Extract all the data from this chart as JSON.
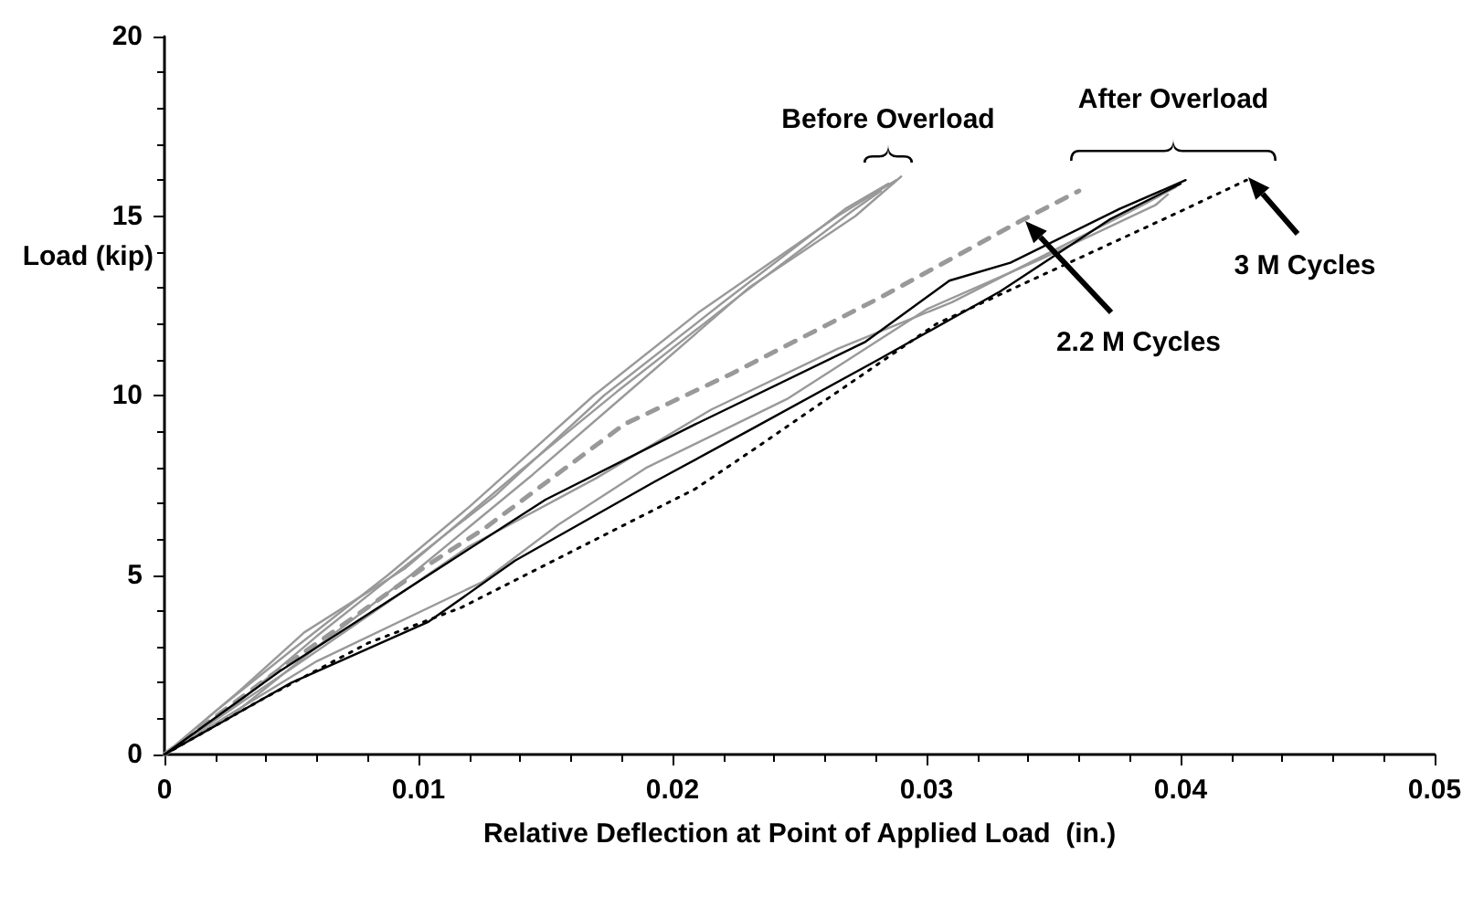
{
  "chart_data": {
    "type": "line",
    "xlabel": "Relative Deflection at Point of Applied Load  (in.)",
    "ylabel": "Load (kip)",
    "xlim": [
      0,
      0.05
    ],
    "xticks": [
      0,
      0.01,
      0.02,
      0.03,
      0.04,
      0.05
    ],
    "ylim": [
      0,
      20
    ],
    "yticks": [
      0,
      5,
      10,
      15,
      20
    ],
    "grid": false,
    "marker": "none",
    "annotations": [
      "Before Overload",
      "After Overload",
      "2.2 M Cycles",
      "3  M Cycles"
    ],
    "series": [
      {
        "color": "#999999",
        "line_style": "solid",
        "x": [
          0,
          0.002,
          0.005,
          0.0088,
          0.012,
          0.0169,
          0.021,
          0.0265,
          0.0288
        ],
        "values": [
          0,
          1.2,
          2.9,
          5,
          6.9,
          10,
          12.3,
          15,
          16
        ]
      },
      {
        "color": "#999999",
        "line_style": "solid",
        "x": [
          0,
          0.003,
          0.006,
          0.0092,
          0.013,
          0.0173,
          0.022,
          0.0268,
          0.0285
        ],
        "values": [
          0,
          1.5,
          3.3,
          5.1,
          7.2,
          10,
          12.6,
          15.2,
          15.9
        ]
      },
      {
        "color": "#999999",
        "line_style": "solid",
        "x": [
          0,
          0.003,
          0.0055,
          0.0095,
          0.014,
          0.0178,
          0.0225,
          0.027,
          0.0282
        ],
        "values": [
          0,
          1.8,
          3.4,
          5.2,
          7.9,
          10.1,
          12.7,
          15.1,
          15.7
        ]
      },
      {
        "color": "#999999",
        "line_style": "solid",
        "x": [
          0,
          0.0025,
          0.006,
          0.0097,
          0.0145,
          0.0181,
          0.023,
          0.0272,
          0.029
        ],
        "values": [
          0,
          1,
          3,
          5,
          7.8,
          10,
          13,
          15,
          16.1
        ]
      },
      {
        "color": "#999999",
        "line_style": "dashed",
        "x": [
          0,
          0.004,
          0.0102,
          0.0126,
          0.0181,
          0.0223,
          0.0281,
          0.0338,
          0.036
        ],
        "values": [
          0,
          2.1,
          5.2,
          6.3,
          9.2,
          10.6,
          12.7,
          14.9,
          15.7
        ]
      },
      {
        "color": "#999999",
        "line_style": "solid",
        "x": [
          0,
          0.005,
          0.012,
          0.017,
          0.0215,
          0.0265,
          0.031,
          0.036,
          0.0385,
          0.0398
        ],
        "values": [
          0,
          2.4,
          5.8,
          7.7,
          9.6,
          11.3,
          12.6,
          14.4,
          15.3,
          15.8
        ]
      },
      {
        "color": "#999999",
        "line_style": "solid",
        "x": [
          0,
          0.006,
          0.0125,
          0.0155,
          0.019,
          0.0245,
          0.03,
          0.0345,
          0.039,
          0.0395
        ],
        "values": [
          0,
          2.6,
          4.8,
          6.4,
          8,
          9.9,
          12.4,
          13.8,
          15.3,
          15.6
        ]
      },
      {
        "color": "#000000",
        "line_style": "solid",
        "x": [
          0,
          0.0045,
          0.0104,
          0.015,
          0.0209,
          0.0276,
          0.0309,
          0.0333,
          0.0376,
          0.0402
        ],
        "values": [
          0,
          2.3,
          5,
          7.1,
          9.2,
          11.5,
          13.2,
          13.7,
          15.2,
          16
        ]
      },
      {
        "color": "#000000",
        "line_style": "solid",
        "x": [
          0,
          0.005,
          0.0104,
          0.0138,
          0.0193,
          0.0232,
          0.0281,
          0.0329,
          0.0372,
          0.04
        ],
        "values": [
          0,
          2,
          3.7,
          5.4,
          7.6,
          9.1,
          11,
          12.9,
          14.9,
          15.9
        ]
      },
      {
        "color": "#000000",
        "line_style": "dotted",
        "x": [
          0,
          0.004,
          0.008,
          0.0117,
          0.0209,
          0.0232,
          0.0304,
          0.0396,
          0.0426
        ],
        "values": [
          0,
          1.6,
          3.1,
          4.1,
          7.4,
          8.5,
          12,
          15,
          16
        ]
      }
    ]
  }
}
